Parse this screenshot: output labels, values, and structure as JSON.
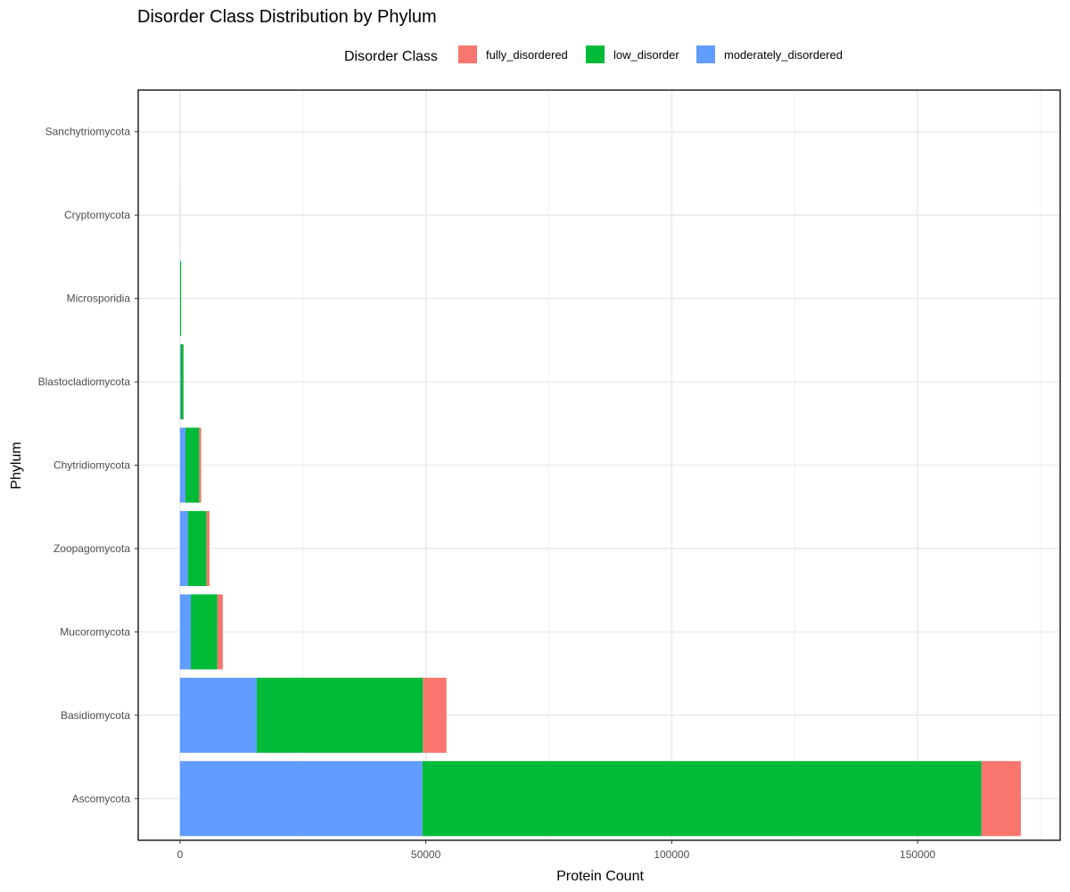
{
  "chart_data": {
    "type": "bar",
    "orientation": "horizontal",
    "stacked": true,
    "title": "Disorder Class Distribution by Phylum",
    "xlabel": "Protein Count",
    "ylabel": "Phylum",
    "xlim": [
      -8500,
      179000
    ],
    "xticks": [
      0,
      50000,
      100000,
      150000
    ],
    "grid": true,
    "legend": {
      "title": "Disorder Class",
      "position": "top"
    },
    "categories": [
      "Ascomycota",
      "Basidiomycota",
      "Mucoromycota",
      "Zoopagomycota",
      "Chytridiomycota",
      "Blastocladiomycota",
      "Microsporidia",
      "Cryptomycota",
      "Sanchytriomycota"
    ],
    "series": [
      {
        "name": "moderately_disordered",
        "color": "#619CFF",
        "values": [
          49300,
          15600,
          2200,
          1600,
          1100,
          150,
          30,
          5,
          2
        ]
      },
      {
        "name": "low_disorder",
        "color": "#00BA38",
        "values": [
          113700,
          33800,
          5400,
          3800,
          2800,
          550,
          200,
          10,
          5
        ]
      },
      {
        "name": "fully_disordered",
        "color": "#F8766D",
        "values": [
          8000,
          4800,
          1100,
          600,
          400,
          50,
          10,
          2,
          1
        ]
      }
    ],
    "legend_order": [
      "fully_disordered",
      "low_disorder",
      "moderately_disordered"
    ]
  }
}
